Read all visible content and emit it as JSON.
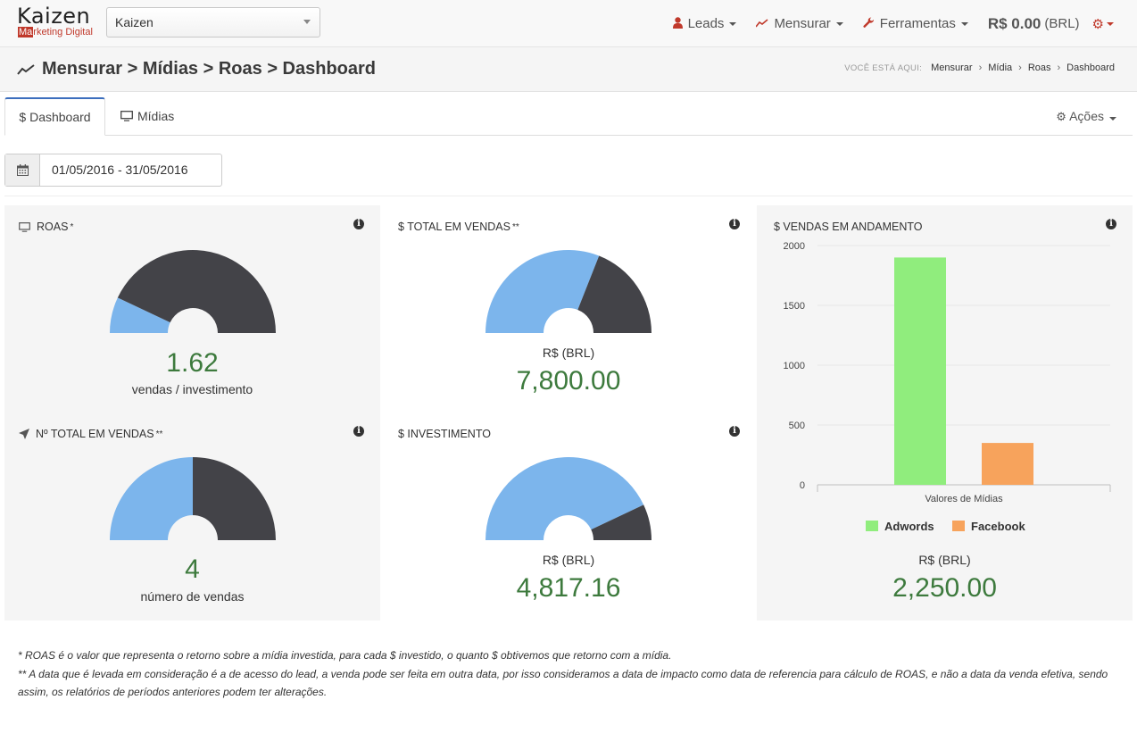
{
  "brand": {
    "name": "Kaizen",
    "tagline_highlight": "Ma",
    "tagline_rest": "rketing Digital"
  },
  "account_select": {
    "value": "Kaizen"
  },
  "topnav": {
    "leads": "Leads",
    "mensurar": "Mensurar",
    "ferramentas": "Ferramentas",
    "balance": "R$ 0.00",
    "balance_currency": "(BRL)"
  },
  "page": {
    "title": "Mensurar > Mídias > Roas > Dashboard"
  },
  "breadcrumb": {
    "lead": "VOCÊ ESTÁ AQUI:",
    "items": [
      "Mensurar",
      "Mídia",
      "Roas",
      "Dashboard"
    ]
  },
  "tabs": {
    "dashboard": "$ Dashboard",
    "midias": "Mídias",
    "acoes": "Ações"
  },
  "date_range": {
    "value": "01/05/2016 - 31/05/2016"
  },
  "colors": {
    "blue": "#7cb5ec",
    "dark": "#434348",
    "green": "#90ed7d",
    "orange": "#f7a35c",
    "value_green": "#3d7a3d"
  },
  "widgets": {
    "roas": {
      "title": "ROAS",
      "mark": "*",
      "value": "1.62",
      "label": "vendas / investimento",
      "gauge_fraction": 0.14
    },
    "total_vendas": {
      "title": "$ TOTAL EM VENDAS",
      "mark": "**",
      "currency": "R$ (BRL)",
      "value": "7,800.00",
      "gauge_fraction": 0.62
    },
    "vendas_andamento": {
      "title": "$ VENDAS EM ANDAMENTO",
      "currency": "R$ (BRL)",
      "value": "2,250.00"
    },
    "n_vendas": {
      "title": "Nº TOTAL EM VENDAS",
      "mark": "**",
      "value": "4",
      "label": "número de vendas",
      "gauge_fraction": 0.5
    },
    "investimento": {
      "title": "$ INVESTIMENTO",
      "currency": "R$ (BRL)",
      "value": "4,817.16",
      "gauge_fraction": 0.86
    }
  },
  "chart_data": {
    "type": "bar",
    "categories": [
      "Valores de Mídias"
    ],
    "series": [
      {
        "name": "Adwords",
        "values": [
          1900
        ],
        "color": "#90ed7d"
      },
      {
        "name": "Facebook",
        "values": [
          350
        ],
        "color": "#f7a35c"
      }
    ],
    "yticks": [
      0,
      500,
      1000,
      1500,
      2000
    ],
    "ylim": [
      0,
      2000
    ],
    "grid": true,
    "legend": "bottom"
  },
  "footnotes": [
    "* ROAS é o valor que representa o retorno sobre a mídia investida, para cada $ investido, o quanto $ obtivemos que retorno com a mídia.",
    "** A data que é levada em consideração é a de acesso do lead, a venda pode ser feita em outra data, por isso consideramos a data de impacto como data de referencia para cálculo de ROAS, e não a data da venda efetiva, sendo assim, os relatórios de períodos anteriores podem ter alterações."
  ]
}
